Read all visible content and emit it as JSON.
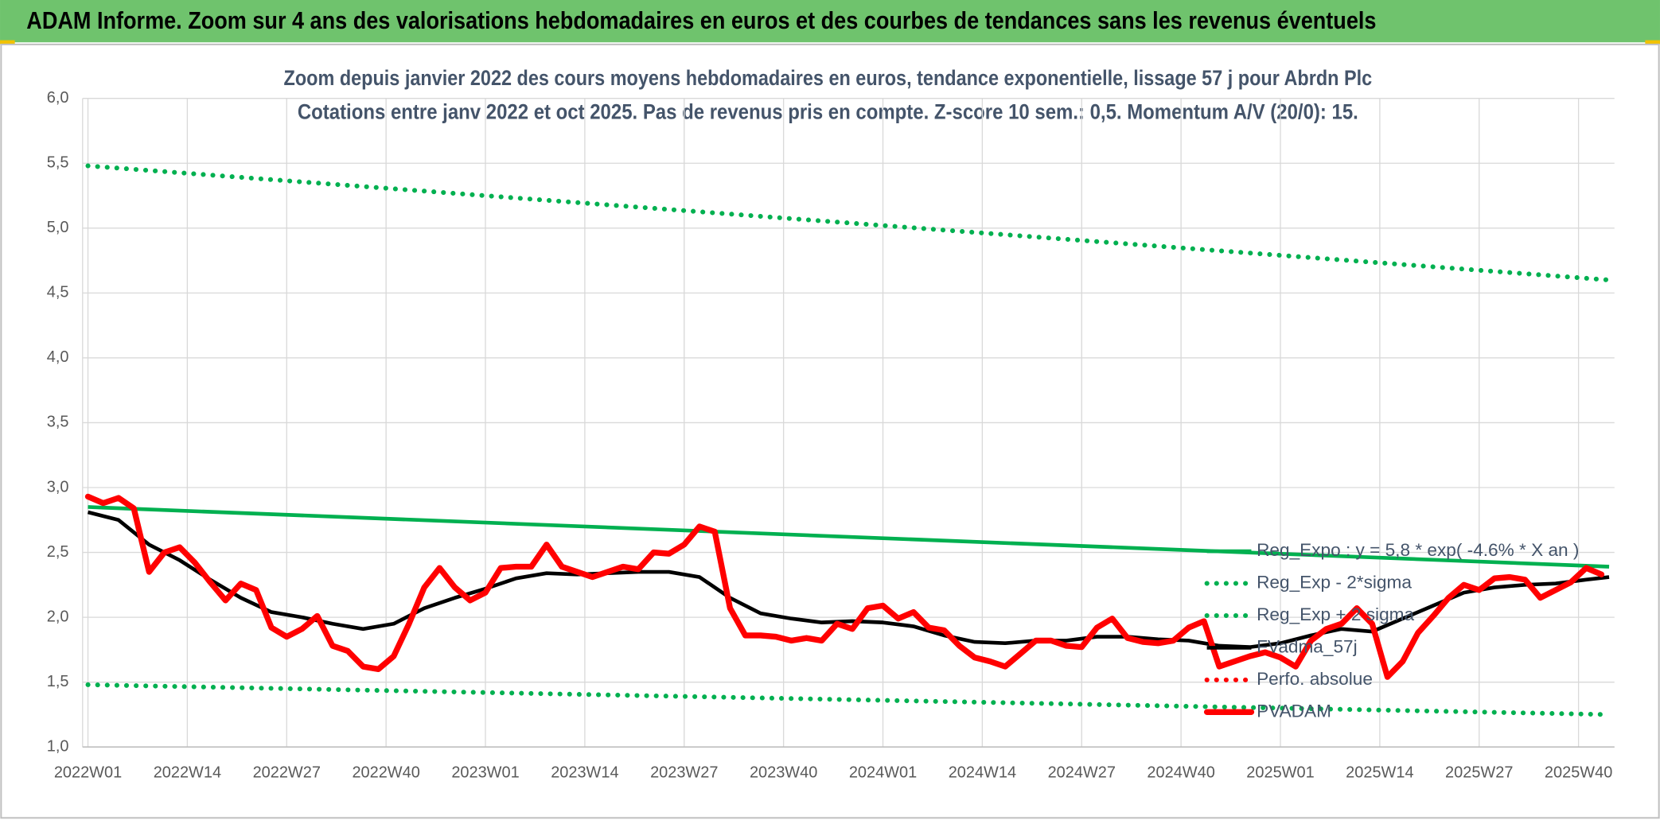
{
  "chart_data": {
    "type": "line",
    "title": "ADAM Informe. Zoom sur 4 ans des valorisations hebdomadaires en euros et des courbes de tendances sans les revenus éventuels",
    "subtitle_lines": [
      "Zoom depuis janvier 2022 des cours moyens hebdomadaires en euros, tendance exponentielle, lissage 57 j pour Abrdn Plc",
      "Cotations entre janv 2022 et oct 2025. Pas de revenus pris en compte. Z-score 10 sem.: 0,5. Momentum A/V (20/0): 15."
    ],
    "xlim": [
      -0.7,
      199.7
    ],
    "xticks": [
      {
        "value": 0,
        "label": "2022W01"
      },
      {
        "value": 13,
        "label": "2022W14"
      },
      {
        "value": 26,
        "label": "2022W27"
      },
      {
        "value": 39,
        "label": "2022W40"
      },
      {
        "value": 52,
        "label": "2023W01"
      },
      {
        "value": 65,
        "label": "2023W14"
      },
      {
        "value": 78,
        "label": "2023W27"
      },
      {
        "value": 91,
        "label": "2023W40"
      },
      {
        "value": 104,
        "label": "2024W01"
      },
      {
        "value": 117,
        "label": "2024W14"
      },
      {
        "value": 130,
        "label": "2024W27"
      },
      {
        "value": 143,
        "label": "2024W40"
      },
      {
        "value": 156,
        "label": "2025W01"
      },
      {
        "value": 169,
        "label": "2025W14"
      },
      {
        "value": 182,
        "label": "2025W27"
      },
      {
        "value": 195,
        "label": "2025W40"
      }
    ],
    "ylim": [
      1,
      6
    ],
    "yticks": [
      {
        "value": 1,
        "label": "1,0"
      },
      {
        "value": 1.5,
        "label": "1,5"
      },
      {
        "value": 2,
        "label": "2,0"
      },
      {
        "value": 2.5,
        "label": "2,5"
      },
      {
        "value": 3,
        "label": "3,0"
      },
      {
        "value": 3.5,
        "label": "3,5"
      },
      {
        "value": 4,
        "label": "4,0"
      },
      {
        "value": 4.5,
        "label": "4,5"
      },
      {
        "value": 5,
        "label": "5,0"
      },
      {
        "value": 5.5,
        "label": "5,5"
      },
      {
        "value": 6,
        "label": "6,0"
      }
    ],
    "grid": true,
    "legend": "lower right",
    "series": [
      {
        "name": "Reg_Expo : y = 5,8 * exp( -4.6% *  X  an )",
        "color": "#00b050",
        "style": "solid",
        "x": [
          0,
          199
        ],
        "values": [
          2.85,
          2.39
        ]
      },
      {
        "name": "Reg_Exp - 2*sigma",
        "color": "#00b050",
        "style": "dotted",
        "x": [
          0,
          199
        ],
        "values": [
          1.48,
          1.25
        ]
      },
      {
        "name": "Reg_Exp + 2 sigma",
        "color": "#00b050",
        "style": "dotted",
        "x": [
          0,
          199
        ],
        "values": [
          5.48,
          4.6
        ]
      },
      {
        "name": "FVadma_57j",
        "color": "#000000",
        "style": "solid",
        "x": [
          0,
          4,
          8,
          12,
          16,
          20,
          24,
          28,
          32,
          36,
          40,
          44,
          48,
          52,
          56,
          60,
          64,
          68,
          72,
          76,
          80,
          84,
          88,
          92,
          96,
          100,
          104,
          108,
          112,
          116,
          120,
          124,
          128,
          132,
          136,
          140,
          144,
          148,
          152,
          156,
          160,
          164,
          168,
          172,
          176,
          180,
          184,
          188,
          192,
          196,
          199
        ],
        "values": [
          2.81,
          2.75,
          2.56,
          2.44,
          2.29,
          2.15,
          2.04,
          2.0,
          1.95,
          1.91,
          1.95,
          2.07,
          2.15,
          2.22,
          2.3,
          2.34,
          2.33,
          2.34,
          2.35,
          2.35,
          2.31,
          2.15,
          2.03,
          1.99,
          1.96,
          1.97,
          1.96,
          1.93,
          1.86,
          1.81,
          1.8,
          1.82,
          1.82,
          1.85,
          1.85,
          1.83,
          1.82,
          1.78,
          1.77,
          1.8,
          1.86,
          1.91,
          1.89,
          1.99,
          2.09,
          2.19,
          2.23,
          2.25,
          2.26,
          2.29,
          2.31
        ]
      },
      {
        "name": "Perfo. absolue",
        "color": "#ff0000",
        "style": "dotted",
        "x": [],
        "values": []
      },
      {
        "name": "PVADAM",
        "color": "#ff0000",
        "style": "thick",
        "x": [
          0,
          2,
          4,
          6,
          8,
          10,
          12,
          14,
          16,
          18,
          20,
          22,
          24,
          26,
          28,
          30,
          32,
          34,
          36,
          38,
          40,
          42,
          44,
          46,
          48,
          50,
          52,
          54,
          56,
          58,
          60,
          62,
          64,
          66,
          68,
          70,
          72,
          74,
          76,
          78,
          80,
          82,
          84,
          86,
          88,
          90,
          92,
          94,
          96,
          98,
          100,
          102,
          104,
          106,
          108,
          110,
          112,
          114,
          116,
          118,
          120,
          122,
          124,
          126,
          128,
          130,
          132,
          134,
          136,
          138,
          140,
          142,
          144,
          146,
          148,
          150,
          152,
          154,
          156,
          158,
          160,
          162,
          164,
          166,
          168,
          170,
          172,
          174,
          176,
          178,
          180,
          182,
          184,
          186,
          188,
          190,
          192,
          194,
          196,
          198
        ],
        "values": [
          2.93,
          2.88,
          2.92,
          2.84,
          2.35,
          2.5,
          2.54,
          2.42,
          2.27,
          2.13,
          2.26,
          2.21,
          1.92,
          1.85,
          1.91,
          2.01,
          1.78,
          1.74,
          1.62,
          1.6,
          1.7,
          1.95,
          2.23,
          2.38,
          2.23,
          2.13,
          2.19,
          2.38,
          2.39,
          2.39,
          2.56,
          2.39,
          2.35,
          2.31,
          2.35,
          2.39,
          2.37,
          2.5,
          2.49,
          2.56,
          2.7,
          2.66,
          2.07,
          1.86,
          1.86,
          1.85,
          1.82,
          1.84,
          1.82,
          1.95,
          1.91,
          2.07,
          2.09,
          1.99,
          2.04,
          1.92,
          1.9,
          1.78,
          1.69,
          1.66,
          1.62,
          1.72,
          1.82,
          1.82,
          1.78,
          1.77,
          1.92,
          1.99,
          1.84,
          1.81,
          1.8,
          1.82,
          1.92,
          1.97,
          1.62,
          1.66,
          1.7,
          1.73,
          1.69,
          1.62,
          1.82,
          1.91,
          1.95,
          2.07,
          1.95,
          1.54,
          1.66,
          1.88,
          2.01,
          2.15,
          2.25,
          2.21,
          2.3,
          2.31,
          2.29,
          2.15,
          2.21,
          2.27,
          2.38,
          2.33
        ]
      }
    ]
  }
}
